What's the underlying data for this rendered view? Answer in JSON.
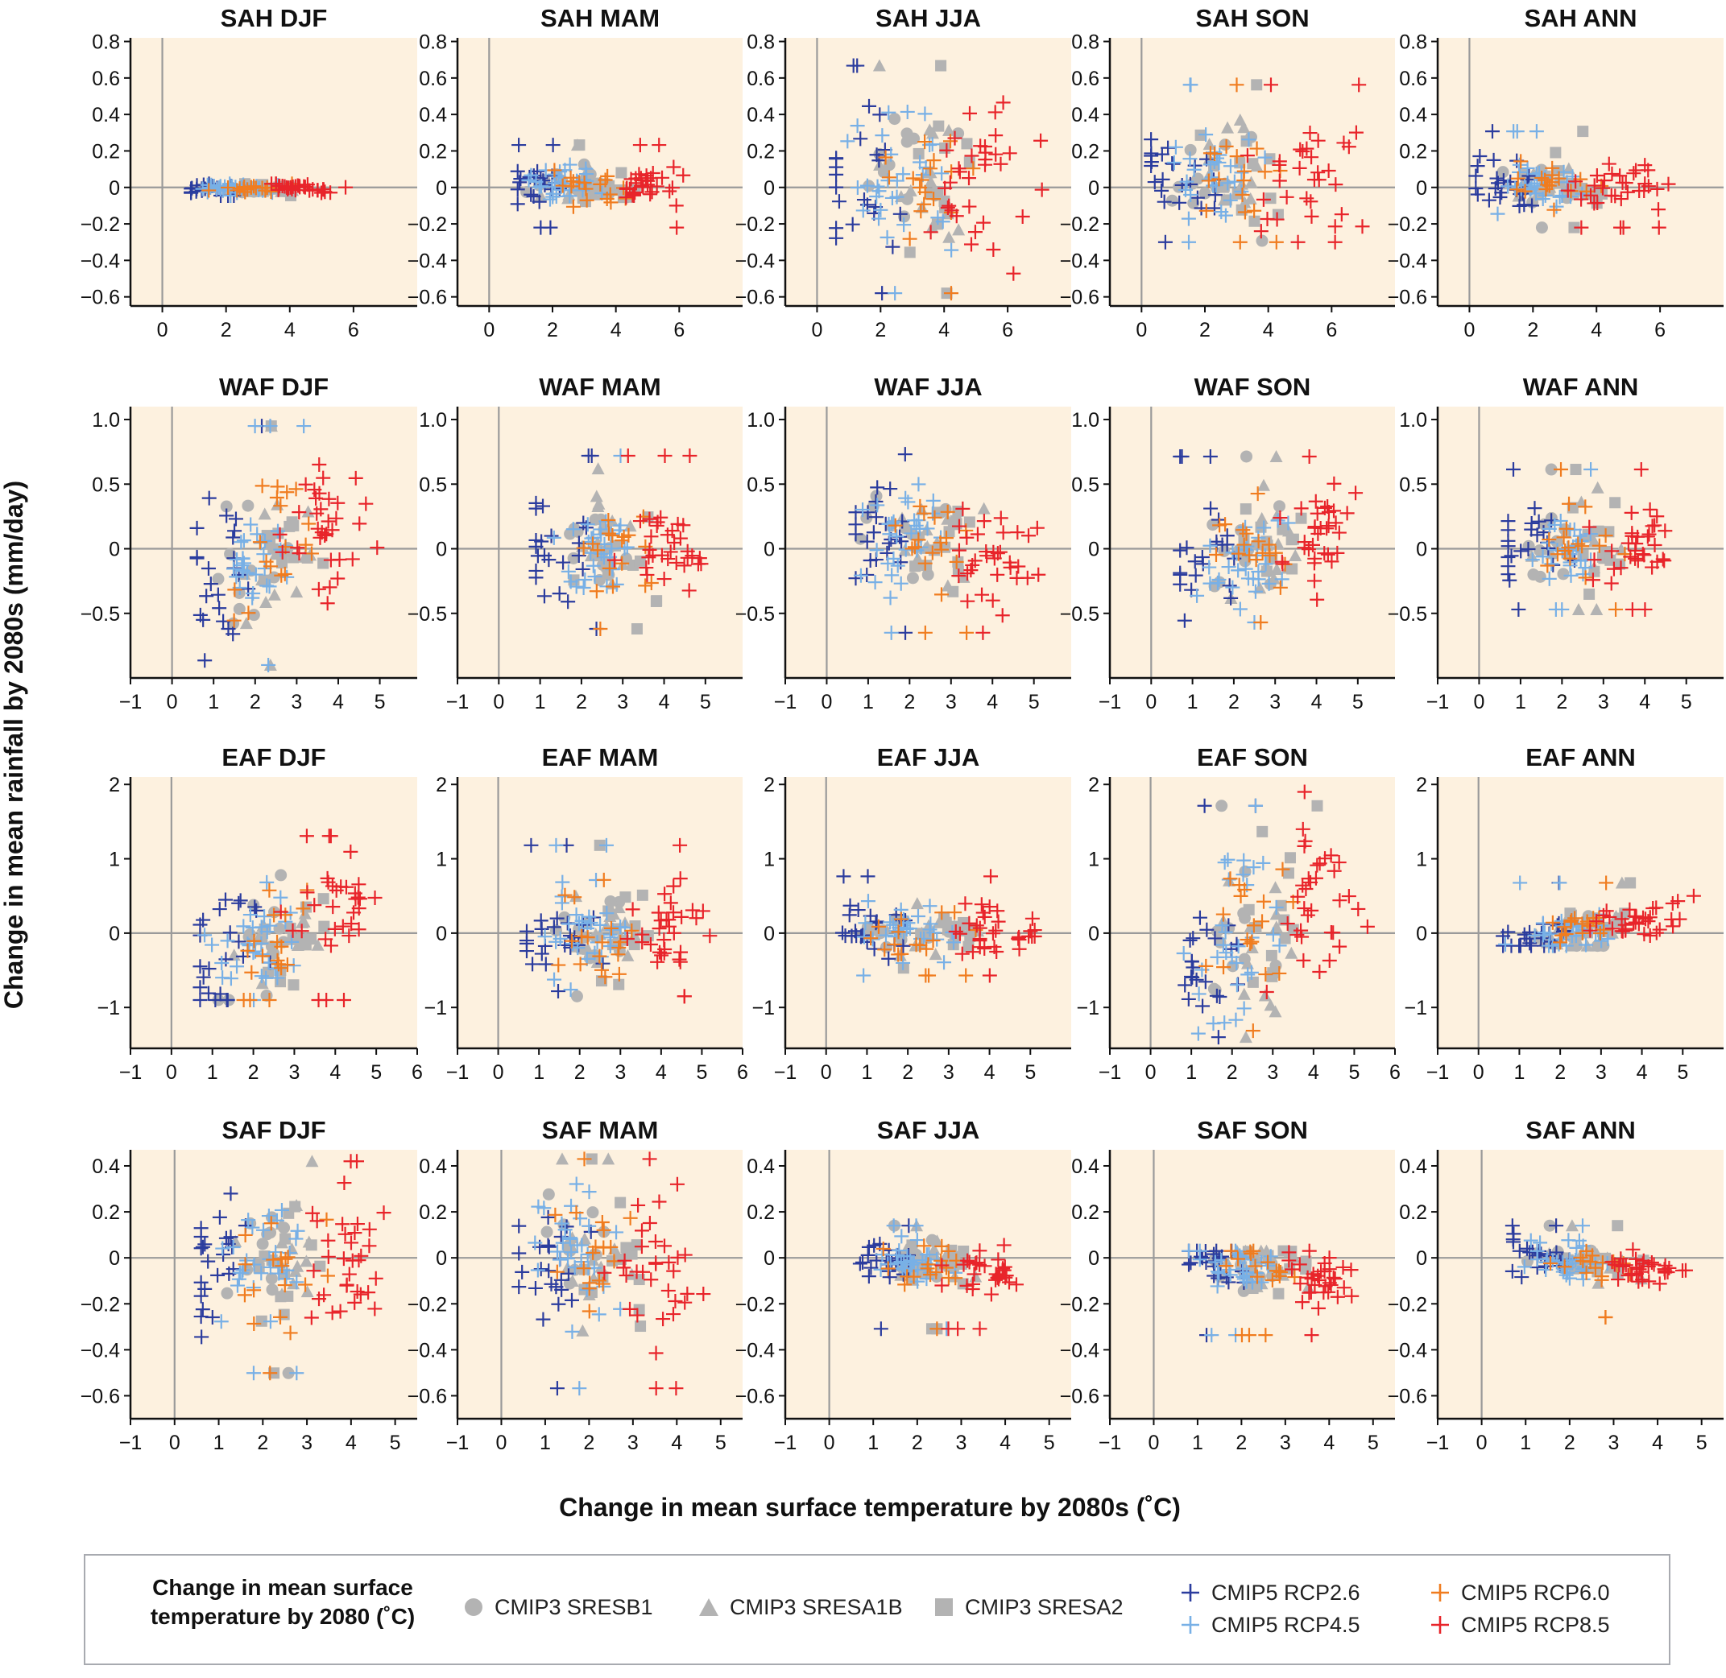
{
  "figure": {
    "ylabel": "Change in mean rainfall by 2080s (mm/day)",
    "xlabel": "Change in mean surface temperature by 2080s (˚C)"
  },
  "colors": {
    "background": "#fdf1df",
    "axis": "#9a9a9a",
    "CMIP3": "#b3b3b3",
    "RCP2.6": "#2b3c9e",
    "RCP4.5": "#78b0e6",
    "RCP6.0": "#f07c1f",
    "RCP8.5": "#e8242a"
  },
  "legend": {
    "title": "Change in mean surface temperature by 2080 (˚C)",
    "items": [
      {
        "label": "CMIP3 SRESB1",
        "marker": "circle",
        "color": "#b3b3b3"
      },
      {
        "label": "CMIP3 SRESA1B",
        "marker": "triangle",
        "color": "#b3b3b3"
      },
      {
        "label": "CMIP3 SRESA2",
        "marker": "square",
        "color": "#b3b3b3"
      },
      {
        "label": "CMIP5 RCP2.6",
        "marker": "plus",
        "color": "#2b3c9e"
      },
      {
        "label": "CMIP5 RCP4.5",
        "marker": "plus",
        "color": "#78b0e6"
      },
      {
        "label": "CMIP5 RCP6.0",
        "marker": "plus",
        "color": "#f07c1f"
      },
      {
        "label": "CMIP5 RCP8.5",
        "marker": "plus",
        "color": "#e8242a"
      }
    ]
  },
  "chart_data": {
    "type": "scatter",
    "rows": [
      {
        "region": "SAH",
        "yticks": [
          -0.6,
          -0.4,
          -0.2,
          0,
          0.2,
          0.4,
          0.6,
          0.8
        ],
        "ylim": [
          -0.65,
          0.82
        ],
        "xticks": [
          [
            0,
            2,
            4,
            6
          ],
          [
            0,
            2,
            4,
            6
          ],
          [
            0,
            2,
            4,
            6
          ],
          [
            0,
            2,
            4,
            6
          ],
          [
            0,
            2,
            4,
            6
          ]
        ],
        "xlims": [
          [
            -1,
            8
          ],
          [
            -1,
            8
          ],
          [
            -1,
            8
          ],
          [
            -1,
            8
          ],
          [
            -1,
            8
          ]
        ]
      },
      {
        "region": "WAF",
        "yticks": [
          -0.5,
          0,
          0.5,
          1.0
        ],
        "ylim": [
          -1.0,
          1.1
        ],
        "xticks": [
          [
            -1,
            0,
            1,
            2,
            3,
            4,
            5
          ],
          [
            -1,
            0,
            1,
            2,
            3,
            4,
            5
          ],
          [
            -1,
            0,
            1,
            2,
            3,
            4,
            5
          ],
          [
            -1,
            0,
            1,
            2,
            3,
            4,
            5
          ],
          [
            -1,
            0,
            1,
            2,
            3,
            4,
            5
          ]
        ],
        "xlims": [
          [
            -1,
            5.9
          ],
          [
            -1,
            5.9
          ],
          [
            -1,
            5.9
          ],
          [
            -1,
            5.9
          ],
          [
            -1,
            5.9
          ]
        ]
      },
      {
        "region": "EAF",
        "yticks": [
          -1,
          0,
          1,
          2
        ],
        "ylim": [
          -1.55,
          2.1
        ],
        "xticks": [
          [
            -1,
            0,
            1,
            2,
            3,
            4,
            5,
            6
          ],
          [
            -1,
            0,
            1,
            2,
            3,
            4,
            5,
            6
          ],
          [
            -1,
            0,
            1,
            2,
            3,
            4,
            5
          ],
          [
            -1,
            0,
            1,
            2,
            3,
            4,
            5,
            6
          ],
          [
            -1,
            0,
            1,
            2,
            3,
            4,
            5
          ]
        ],
        "xlims": [
          [
            -1,
            6
          ],
          [
            -1,
            6
          ],
          [
            -1,
            6
          ],
          [
            -1,
            6
          ],
          [
            -1,
            6
          ]
        ]
      },
      {
        "region": "SAF",
        "yticks": [
          -0.6,
          -0.4,
          -0.2,
          0,
          0.2,
          0.4
        ],
        "ylim": [
          -0.7,
          0.47
        ],
        "xticks": [
          [
            -1,
            0,
            1,
            2,
            3,
            4,
            5
          ],
          [
            -1,
            0,
            1,
            2,
            3,
            4,
            5
          ],
          [
            -1,
            0,
            1,
            2,
            3,
            4,
            5
          ],
          [
            -1,
            0,
            1,
            2,
            3,
            4,
            5
          ],
          [
            -1,
            0,
            1,
            2,
            3,
            4,
            5
          ]
        ],
        "xlims": [
          [
            -1,
            5.5
          ],
          [
            -1,
            5.5
          ],
          [
            -1,
            5.5
          ],
          [
            -1,
            5.5
          ],
          [
            -1,
            5.5
          ]
        ]
      }
    ],
    "columns": [
      "DJF",
      "MAM",
      "JJA",
      "SON",
      "ANN"
    ],
    "panels": [
      [
        {
          "title": "SAH DJF",
          "xspan": [
            0.9,
            5.8
          ],
          "yspan": [
            -0.06,
            0.02
          ],
          "tilt": 0,
          "spread": 0.5
        },
        {
          "title": "SAH MAM",
          "xspan": [
            0.9,
            6.4
          ],
          "yspan": [
            -0.22,
            0.24
          ],
          "tilt": 0,
          "spread": 0.4
        },
        {
          "title": "SAH JJA",
          "xspan": [
            0.6,
            7.3
          ],
          "yspan": [
            -0.58,
            0.72
          ],
          "tilt": 0,
          "spread": 0.55
        },
        {
          "title": "SAH SON",
          "xspan": [
            0.3,
            7.3
          ],
          "yspan": [
            -0.3,
            0.72
          ],
          "tilt": 0,
          "spread": 0.5
        },
        {
          "title": "SAH ANN",
          "xspan": [
            0.2,
            6.6
          ],
          "yspan": [
            -0.22,
            0.36
          ],
          "tilt": 0,
          "spread": 0.4
        }
      ],
      [
        {
          "title": "WAF DJF",
          "xspan": [
            0.6,
            5.1
          ],
          "yspan": [
            -0.9,
            0.98
          ],
          "tilt": 0.08,
          "spread": 0.55
        },
        {
          "title": "WAF MAM",
          "xspan": [
            0.9,
            5.3
          ],
          "yspan": [
            -0.62,
            0.78
          ],
          "tilt": 0,
          "spread": 0.55
        },
        {
          "title": "WAF JJA",
          "xspan": [
            0.7,
            5.3
          ],
          "yspan": [
            -0.65,
            0.78
          ],
          "tilt": -0.05,
          "spread": 0.55
        },
        {
          "title": "WAF SON",
          "xspan": [
            0.7,
            5.5
          ],
          "yspan": [
            -0.57,
            0.8
          ],
          "tilt": 0.05,
          "spread": 0.55
        },
        {
          "title": "WAF ANN",
          "xspan": [
            0.7,
            5.0
          ],
          "yspan": [
            -0.47,
            0.7
          ],
          "tilt": 0.02,
          "spread": 0.5
        }
      ],
      [
        {
          "title": "EAF DJF",
          "xspan": [
            0.7,
            5.4
          ],
          "yspan": [
            -0.9,
            1.55
          ],
          "tilt": 0.12,
          "spread": 0.55
        },
        {
          "title": "EAF MAM",
          "xspan": [
            0.7,
            5.4
          ],
          "yspan": [
            -0.85,
            1.38
          ],
          "tilt": 0.05,
          "spread": 0.5
        },
        {
          "title": "EAF JJA",
          "xspan": [
            0.4,
            5.6
          ],
          "yspan": [
            -0.57,
            0.88
          ],
          "tilt": 0.0,
          "spread": 0.5
        },
        {
          "title": "EAF SON",
          "xspan": [
            0.7,
            5.5
          ],
          "yspan": [
            -1.4,
            1.9
          ],
          "tilt": 0.1,
          "spread": 0.7
        },
        {
          "title": "EAF ANN",
          "xspan": [
            0.6,
            5.4
          ],
          "yspan": [
            -0.17,
            0.98
          ],
          "tilt": 0.08,
          "spread": 0.45
        }
      ],
      [
        {
          "title": "SAF DJF",
          "xspan": [
            0.6,
            5.1
          ],
          "yspan": [
            -0.55,
            0.42
          ],
          "tilt": 0.0,
          "spread": 0.55
        },
        {
          "title": "SAF MAM",
          "xspan": [
            0.4,
            4.9
          ],
          "yspan": [
            -0.65,
            0.43
          ],
          "tilt": -0.05,
          "spread": 0.5
        },
        {
          "title": "SAF JJA",
          "xspan": [
            0.7,
            4.6
          ],
          "yspan": [
            -0.41,
            0.14
          ],
          "tilt": -0.04,
          "spread": 0.35
        },
        {
          "title": "SAF SON",
          "xspan": [
            0.8,
            4.9
          ],
          "yspan": [
            -0.52,
            0.03
          ],
          "tilt": -0.07,
          "spread": 0.35
        },
        {
          "title": "SAF ANN",
          "xspan": [
            0.7,
            4.9
          ],
          "yspan": [
            -0.33,
            0.14
          ],
          "tilt": -0.04,
          "spread": 0.3
        }
      ]
    ],
    "series": [
      {
        "name": "CMIP3 SRESB1",
        "marker": "circle",
        "n": 12,
        "tmean": 0.3
      },
      {
        "name": "CMIP3 SRESA1B",
        "marker": "triangle",
        "n": 14,
        "tmean": 0.42
      },
      {
        "name": "CMIP3 SRESA2",
        "marker": "square",
        "n": 14,
        "tmean": 0.48
      },
      {
        "name": "CMIP5 RCP2.6",
        "marker": "plus",
        "n": 24,
        "tmean": 0.12
      },
      {
        "name": "CMIP5 RCP4.5",
        "marker": "plus",
        "n": 32,
        "tmean": 0.3
      },
      {
        "name": "CMIP5 RCP6.0",
        "marker": "plus",
        "n": 18,
        "tmean": 0.4
      },
      {
        "name": "CMIP5 RCP8.5",
        "marker": "plus",
        "n": 34,
        "tmean": 0.72
      }
    ]
  }
}
